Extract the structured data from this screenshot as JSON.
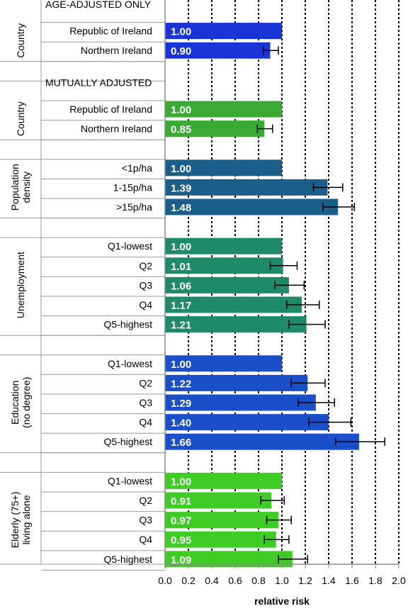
{
  "chart_data": {
    "type": "bar",
    "orientation": "horizontal",
    "xlabel": "relative risk",
    "xlim": [
      0,
      2.0
    ],
    "xticks": [
      "0.0",
      "0.2",
      "0.4",
      "0.6",
      "0.8",
      "1.0",
      "1.2",
      "1.4",
      "1.6",
      "1.8",
      "2.0"
    ],
    "grid": "vertical dotted",
    "sections": [
      {
        "heading": "AGE-ADJUSTED ONLY",
        "group": "Country",
        "color": "#1a35d6",
        "rows": [
          {
            "label": "Republic of Ireland",
            "value": 1.0,
            "value_label": "1.00"
          },
          {
            "label": "Northern Ireland",
            "value": 0.9,
            "value_label": "0.90",
            "ci": [
              0.84,
              0.97
            ]
          }
        ]
      },
      {
        "heading": "MUTUALLY ADJUSTED",
        "group": "Country",
        "color": "#3aaa35",
        "rows": [
          {
            "label": "Republic of Ireland",
            "value": 1.0,
            "value_label": "1.00"
          },
          {
            "label": "Northern Ireland",
            "value": 0.85,
            "value_label": "0.85",
            "ci": [
              0.79,
              0.92
            ]
          }
        ]
      },
      {
        "group": "Population density",
        "color": "#1a5f8a",
        "rows": [
          {
            "label": "<1p/ha",
            "value": 1.0,
            "value_label": "1.00"
          },
          {
            "label": "1-15p/ha",
            "value": 1.39,
            "value_label": "1.39",
            "ci": [
              1.27,
              1.52
            ]
          },
          {
            "label": ">15p/ha",
            "value": 1.48,
            "value_label": "1.48",
            "ci": [
              1.35,
              1.62
            ]
          }
        ]
      },
      {
        "group": "Unemployment",
        "color": "#1f8a6a",
        "rows": [
          {
            "label": "Q1-lowest",
            "value": 1.0,
            "value_label": "1.00"
          },
          {
            "label": "Q2",
            "value": 1.01,
            "value_label": "1.01",
            "ci": [
              0.9,
              1.13
            ]
          },
          {
            "label": "Q3",
            "value": 1.06,
            "value_label": "1.06",
            "ci": [
              0.94,
              1.19
            ]
          },
          {
            "label": "Q4",
            "value": 1.17,
            "value_label": "1.17",
            "ci": [
              1.04,
              1.32
            ]
          },
          {
            "label": "Q5-highest",
            "value": 1.21,
            "value_label": "1.21",
            "ci": [
              1.06,
              1.37
            ]
          }
        ]
      },
      {
        "group": "Education (no degree)",
        "color": "#1b4fc9",
        "rows": [
          {
            "label": "Q1-lowest",
            "value": 1.0,
            "value_label": "1.00"
          },
          {
            "label": "Q2",
            "value": 1.22,
            "value_label": "1.22",
            "ci": [
              1.08,
              1.37
            ]
          },
          {
            "label": "Q3",
            "value": 1.29,
            "value_label": "1.29",
            "ci": [
              1.14,
              1.45
            ]
          },
          {
            "label": "Q4",
            "value": 1.4,
            "value_label": "1.40",
            "ci": [
              1.23,
              1.59
            ]
          },
          {
            "label": "Q5-highest",
            "value": 1.66,
            "value_label": "1.66",
            "ci": [
              1.46,
              1.88
            ]
          }
        ]
      },
      {
        "group": "Elderly (75+) living alone",
        "color": "#3ecc25",
        "rows": [
          {
            "label": "Q1-lowest",
            "value": 1.0,
            "value_label": "1.00"
          },
          {
            "label": "Q2",
            "value": 0.91,
            "value_label": "0.91",
            "ci": [
              0.82,
              1.02
            ]
          },
          {
            "label": "Q3",
            "value": 0.97,
            "value_label": "0.97",
            "ci": [
              0.87,
              1.08
            ]
          },
          {
            "label": "Q4",
            "value": 0.95,
            "value_label": "0.95",
            "ci": [
              0.85,
              1.06
            ]
          },
          {
            "label": "Q5-highest",
            "value": 1.09,
            "value_label": "1.09",
            "ci": [
              0.97,
              1.22
            ]
          }
        ]
      }
    ]
  }
}
